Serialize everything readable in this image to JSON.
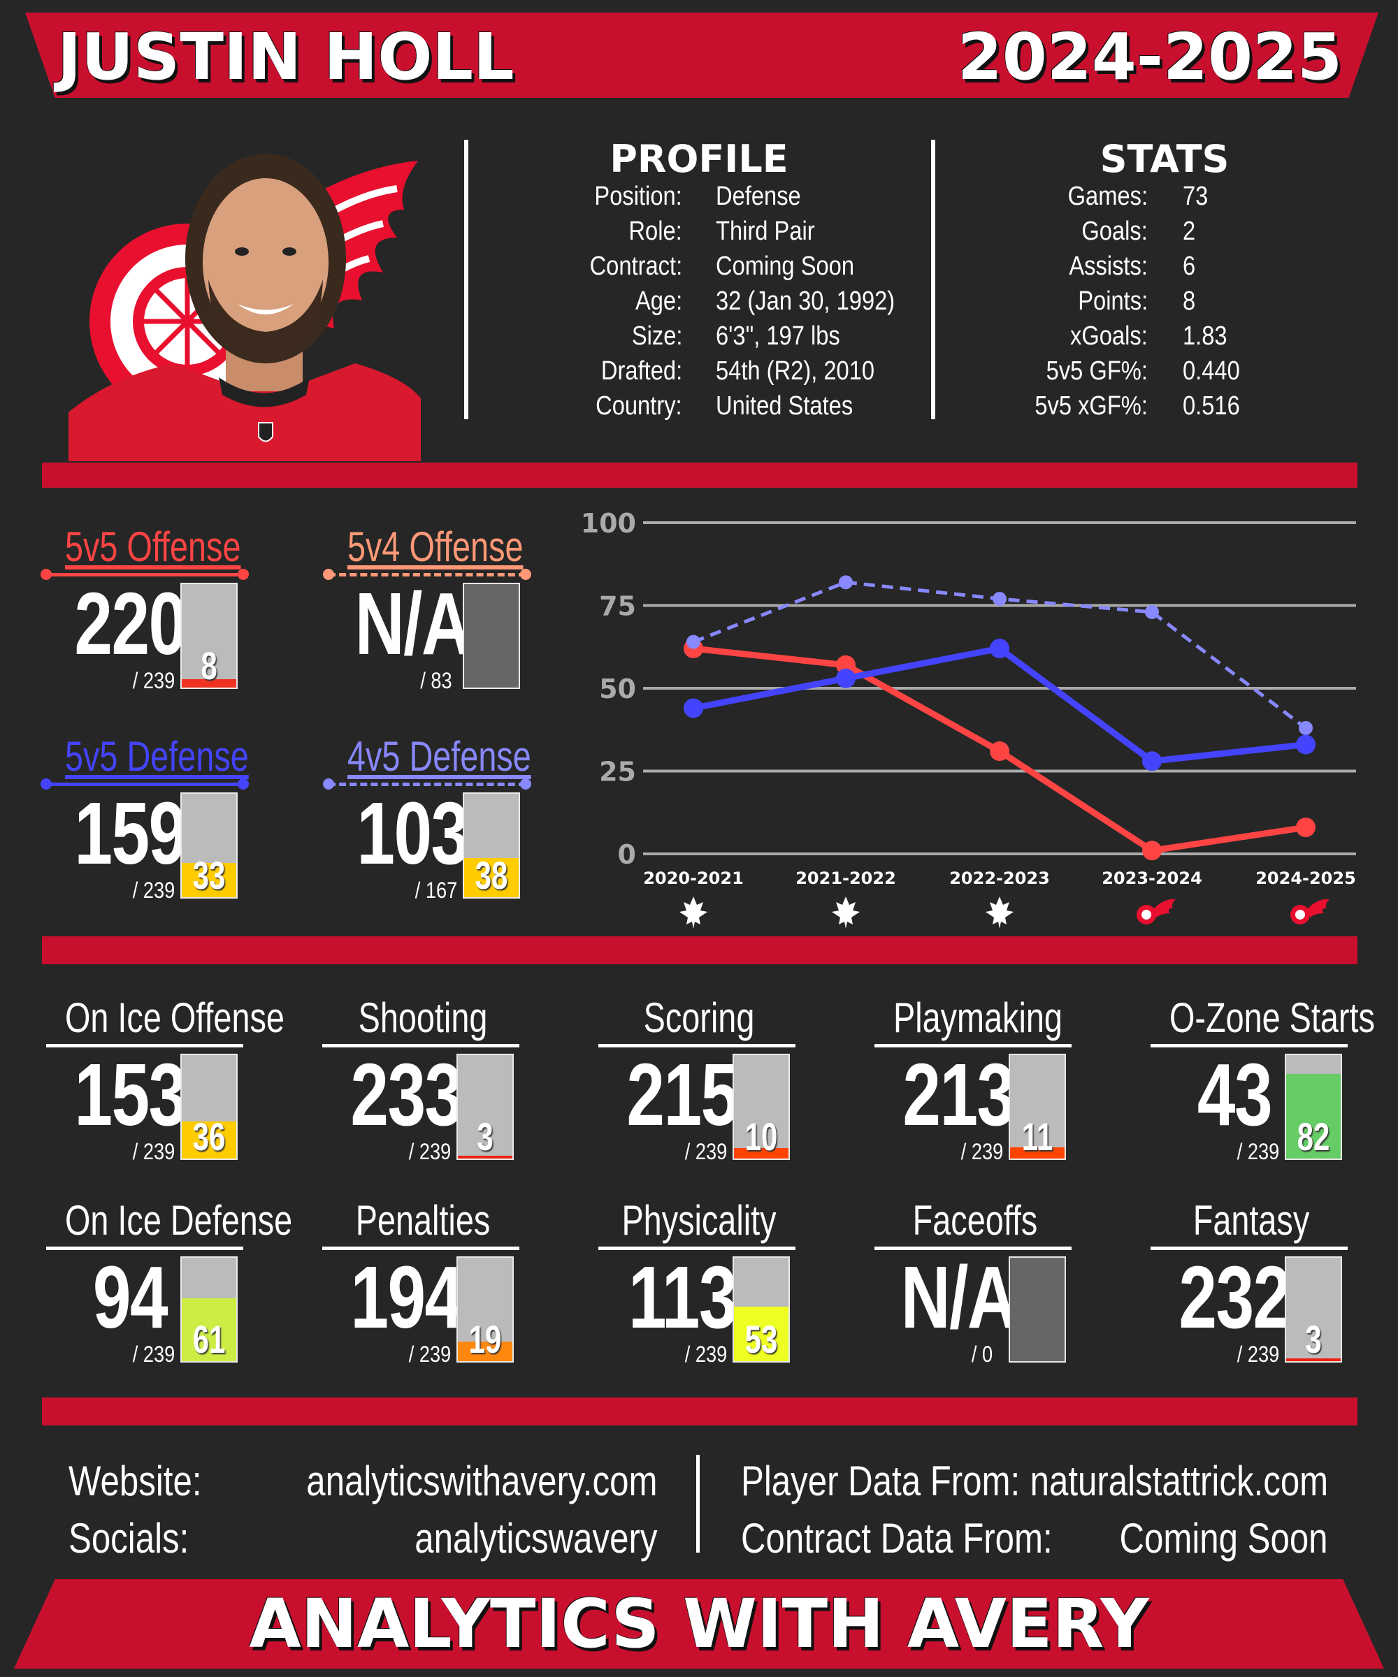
{
  "header": {
    "player_name": "JUSTIN HOLL",
    "season": "2024-2025"
  },
  "colors": {
    "red": "#c8102e",
    "background": "#262626",
    "offense_5v5": "#ff4444",
    "offense_5v4": "#ff9977",
    "defense_5v5": "#4444ff",
    "defense_4v5": "#8888ff"
  },
  "profile": {
    "title": "PROFILE",
    "rows": [
      {
        "label": "Position:",
        "value": "Defense"
      },
      {
        "label": "Role:",
        "value": "Third Pair"
      },
      {
        "label": "Contract:",
        "value": "Coming Soon"
      },
      {
        "label": "Age:",
        "value": "32 (Jan 30, 1992)"
      },
      {
        "label": "Size:",
        "value": "6'3\", 197 lbs"
      },
      {
        "label": "Drafted:",
        "value": "54th (R2), 2010"
      },
      {
        "label": "Country:",
        "value": "United States"
      }
    ]
  },
  "stats": {
    "title": "STATS",
    "rows": [
      {
        "label": "Games:",
        "value": "73"
      },
      {
        "label": "Goals:",
        "value": "2"
      },
      {
        "label": "Assists:",
        "value": "6"
      },
      {
        "label": "Points:",
        "value": "8"
      },
      {
        "label": "xGoals:",
        "value": "1.83"
      },
      {
        "label": "5v5 GF%:",
        "value": "0.440"
      },
      {
        "label": "5v5 xGF%:",
        "value": "0.516"
      }
    ]
  },
  "situational": [
    {
      "title": "5v5 Offense",
      "value": "220",
      "total": "/ 239",
      "percentile": 8,
      "pct_label": "8",
      "color": "#ff4444",
      "fill": "#ee3322",
      "dashed": false
    },
    {
      "title": "5v4 Offense",
      "value": "N/A",
      "total": "/ 83",
      "percentile": null,
      "pct_label": "",
      "color": "#ff9977",
      "fill": "",
      "dashed": true
    },
    {
      "title": "5v5 Defense",
      "value": "159",
      "total": "/ 239",
      "percentile": 33,
      "pct_label": "33",
      "color": "#4444ff",
      "fill": "#ffcc00",
      "dashed": false
    },
    {
      "title": "4v5 Defense",
      "value": "103",
      "total": "/ 167",
      "percentile": 38,
      "pct_label": "38",
      "color": "#8888ff",
      "fill": "#ffcc00",
      "dashed": true
    }
  ],
  "metrics": [
    {
      "title": "On Ice Offense",
      "value": "153",
      "total": "/ 239",
      "percentile": 36,
      "pct_label": "36",
      "fill": "#ffcc00"
    },
    {
      "title": "Shooting",
      "value": "233",
      "total": "/ 239",
      "percentile": 3,
      "pct_label": "3",
      "fill": "#ee2211"
    },
    {
      "title": "Scoring",
      "value": "215",
      "total": "/ 239",
      "percentile": 10,
      "pct_label": "10",
      "fill": "#ff4400"
    },
    {
      "title": "Playmaking",
      "value": "213",
      "total": "/ 239",
      "percentile": 11,
      "pct_label": "11",
      "fill": "#ff4400"
    },
    {
      "title": "O-Zone Starts",
      "value": "43",
      "total": "/ 239",
      "percentile": 82,
      "pct_label": "82",
      "fill": "#66cc66"
    },
    {
      "title": "On Ice Defense",
      "value": "94",
      "total": "/ 239",
      "percentile": 61,
      "pct_label": "61",
      "fill": "#ccee44"
    },
    {
      "title": "Penalties",
      "value": "194",
      "total": "/ 239",
      "percentile": 19,
      "pct_label": "19",
      "fill": "#ff8811"
    },
    {
      "title": "Physicality",
      "value": "113",
      "total": "/ 239",
      "percentile": 53,
      "pct_label": "53",
      "fill": "#eeff22"
    },
    {
      "title": "Faceoffs",
      "value": "N/A",
      "total": "/ 0",
      "percentile": null,
      "pct_label": "",
      "fill": ""
    },
    {
      "title": "Fantasy",
      "value": "232",
      "total": "/ 239",
      "percentile": 3,
      "pct_label": "3",
      "fill": "#ee2211"
    }
  ],
  "chart_data": {
    "type": "line",
    "title": "",
    "xlabel": "",
    "ylabel": "",
    "categories": [
      "2020-2021",
      "2021-2022",
      "2022-2023",
      "2023-2024",
      "2024-2025"
    ],
    "team_icons": [
      "maple-leafs-logo-icon",
      "maple-leafs-logo-icon",
      "maple-leafs-logo-icon",
      "red-wings-logo-icon",
      "red-wings-logo-icon"
    ],
    "ylim": [
      0,
      100
    ],
    "yticks": [
      0,
      25,
      50,
      75,
      100
    ],
    "grid": true,
    "series": [
      {
        "values": [
          62,
          57,
          31,
          1,
          8
        ],
        "color": "#ff4444",
        "dashed": false
      },
      {
        "values": [
          64,
          82,
          77,
          73,
          38
        ],
        "color": "#8888ff",
        "dashed": true
      },
      {
        "values": [
          44,
          53,
          62,
          28,
          33
        ],
        "color": "#4444ff",
        "dashed": false
      }
    ]
  },
  "footer": {
    "website_label": "Website:",
    "website_value": "analyticswithavery.com",
    "socials_label": "Socials:",
    "socials_value": "analyticswavery",
    "player_data_label": "Player Data From:",
    "player_data_value": "naturalstattrick.com",
    "contract_data_label": "Contract Data From:",
    "contract_data_value": "Coming Soon",
    "brand": "ANALYTICS WITH AVERY"
  }
}
